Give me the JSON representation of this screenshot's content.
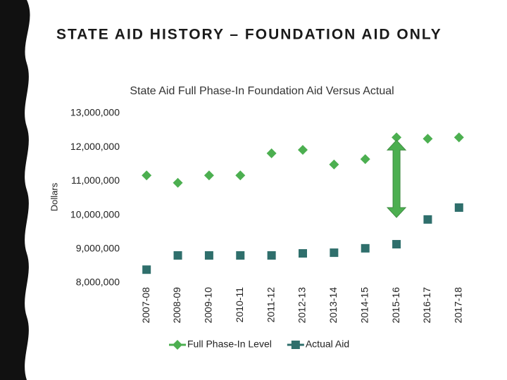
{
  "slide_title": "STATE AID HISTORY – FOUNDATION AID ONLY",
  "chart_data": {
    "type": "line",
    "title": "State Aid Full Phase-In Foundation Aid Versus Actual",
    "y_label": "Dollars",
    "categories": [
      "2007-08",
      "2008-09",
      "2009-10",
      "2010-11",
      "2011-12",
      "2012-13",
      "2013-14",
      "2014-15",
      "2015-16",
      "2016-17",
      "2017-18"
    ],
    "series": [
      {
        "name": "Full Phase-In Level",
        "color": "#4caf50",
        "marker": "diamond",
        "values": [
          11170000,
          10950000,
          11170000,
          11170000,
          11820000,
          11920000,
          11490000,
          11650000,
          12290000,
          12250000,
          12290000
        ]
      },
      {
        "name": "Actual Aid",
        "color": "#2f6f6c",
        "marker": "square",
        "values": [
          8390000,
          8810000,
          8810000,
          8810000,
          8810000,
          8870000,
          8890000,
          9020000,
          9140000,
          9870000,
          10220000
        ]
      }
    ],
    "ylim": [
      8000000,
      13000000
    ],
    "yticks": [
      {
        "value": 8000000,
        "label": "8,000,000"
      },
      {
        "value": 9000000,
        "label": "9,000,000"
      },
      {
        "value": 10000000,
        "label": "10,000,000"
      },
      {
        "value": 11000000,
        "label": "11,000,000"
      },
      {
        "value": 12000000,
        "label": "12,000,000"
      },
      {
        "value": 13000000,
        "label": "13,000,000"
      }
    ],
    "grid": false,
    "legend": "bottom"
  }
}
